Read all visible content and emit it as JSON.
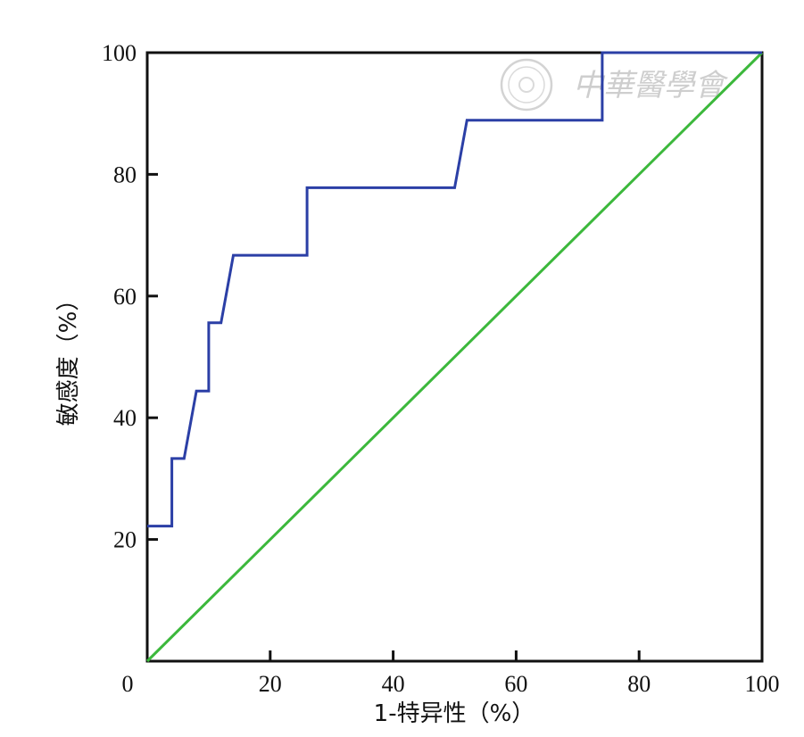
{
  "chart_data": {
    "type": "line",
    "xlabel": "1-特异性（%）",
    "ylabel": "敏感度（%）",
    "xlim": [
      0,
      100
    ],
    "ylim": [
      0,
      100
    ],
    "x_ticks": [
      0,
      20,
      40,
      60,
      80,
      100
    ],
    "y_ticks": [
      20,
      40,
      60,
      80,
      100
    ],
    "x_tick_labels": [
      "0",
      "20",
      "40",
      "60",
      "80",
      "100"
    ],
    "y_tick_labels": [
      "20",
      "40",
      "60",
      "80",
      "100"
    ],
    "grid": false,
    "series": [
      {
        "color": "#2b3fa6",
        "x": [
          0,
          4,
          4,
          6,
          8,
          10,
          10,
          12,
          14,
          26,
          26,
          50,
          52,
          74,
          74,
          100
        ],
        "y": [
          22.2,
          22.2,
          33.3,
          33.3,
          44.4,
          44.4,
          55.6,
          55.6,
          66.7,
          66.7,
          77.8,
          77.8,
          88.9,
          88.9,
          100,
          100
        ]
      },
      {
        "color": "#3cb83c",
        "x": [
          0,
          100
        ],
        "y": [
          0,
          100
        ]
      }
    ]
  },
  "watermark": {
    "text": "中華醫學會"
  }
}
